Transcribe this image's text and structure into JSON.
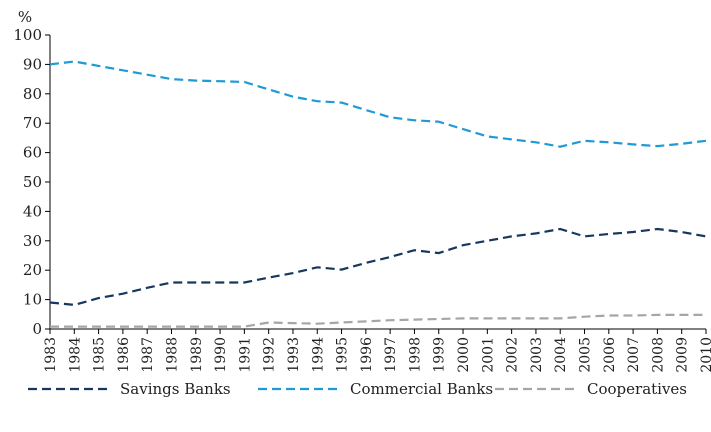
{
  "chart_data": {
    "type": "line",
    "ylabel": "%",
    "ylim": [
      0,
      100
    ],
    "yticks": [
      0,
      10,
      20,
      30,
      40,
      50,
      60,
      70,
      80,
      90,
      100
    ],
    "grid": false,
    "legend_position": "bottom",
    "x": [
      "1983",
      "1984",
      "1985",
      "1986",
      "1987",
      "1988",
      "1989",
      "1990",
      "1991",
      "1992",
      "1993",
      "1994",
      "1995",
      "1996",
      "1997",
      "1998",
      "1999",
      "2000",
      "2001",
      "2002",
      "2003",
      "2004",
      "2005",
      "2006",
      "2007",
      "2008",
      "2009",
      "2010"
    ],
    "series": [
      {
        "name": "Savings Banks",
        "color": "#17375e",
        "dash": "dashed",
        "values": [
          9,
          8.2,
          10.5,
          12,
          14,
          15.8,
          15.8,
          15.8,
          15.8,
          17.5,
          19,
          21,
          20.2,
          22.5,
          24.5,
          26.8,
          25.8,
          28.5,
          30,
          31.5,
          32.5,
          34,
          31.5,
          32.3,
          33,
          34,
          33,
          31.5
        ]
      },
      {
        "name": "Commercial Banks",
        "color": "#1f9ad6",
        "dash": "dashed",
        "values": [
          90,
          91,
          89.5,
          88,
          86.5,
          85,
          84.5,
          84.3,
          84,
          81.5,
          79,
          77.5,
          77,
          74.5,
          72,
          71,
          70.5,
          68,
          65.5,
          64.5,
          63.5,
          62,
          64,
          63.5,
          62.8,
          62.2,
          63,
          64
        ]
      },
      {
        "name": "Cooperatives",
        "color": "#a6a6a6",
        "dash": "dashed",
        "values": [
          0.8,
          0.8,
          0.8,
          0.8,
          0.8,
          0.8,
          0.8,
          0.8,
          0.8,
          2.2,
          2,
          1.8,
          2.2,
          2.6,
          3,
          3.2,
          3.4,
          3.6,
          3.6,
          3.6,
          3.6,
          3.6,
          4.2,
          4.6,
          4.6,
          4.8,
          4.8,
          4.8
        ]
      }
    ]
  }
}
